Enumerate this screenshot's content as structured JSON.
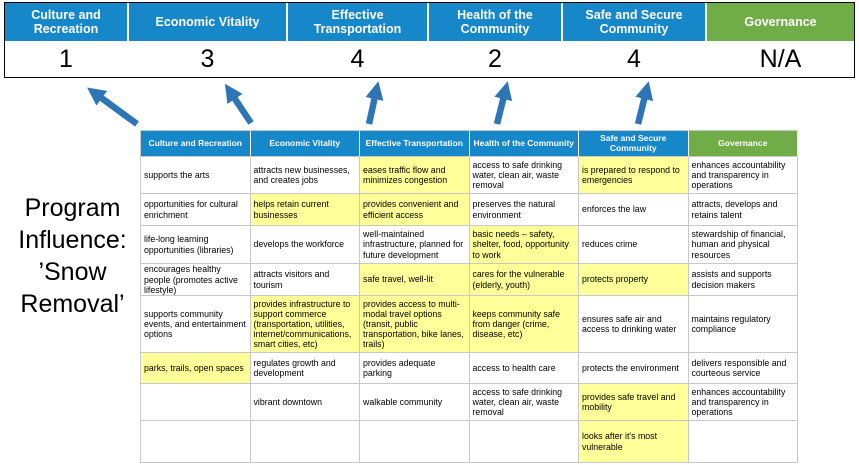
{
  "colors": {
    "blue": "#1688C9",
    "green": "#70AD47",
    "yellow": "#FFFF99",
    "arrow": "#2E75B6",
    "grid": "#C8C8C8"
  },
  "title": {
    "lines": [
      "Program",
      "Influence:",
      "’Snow",
      "Removal’"
    ]
  },
  "banner": {
    "columns": [
      {
        "label": "Culture and Recreation",
        "score": "1",
        "theme": "blue"
      },
      {
        "label": "Economic Vitality",
        "score": "3",
        "theme": "blue"
      },
      {
        "label": "Effective Transportation",
        "score": "4",
        "theme": "blue"
      },
      {
        "label": "Health of the Community",
        "score": "2",
        "theme": "blue"
      },
      {
        "label": "Safe and Secure Community",
        "score": "4",
        "theme": "blue"
      },
      {
        "label": "Governance",
        "score": "N/A",
        "theme": "green"
      }
    ]
  },
  "matrix": {
    "headers": [
      {
        "label": "Culture and Recreation",
        "theme": "blue"
      },
      {
        "label": "Economic Vitality",
        "theme": "blue"
      },
      {
        "label": "Effective Transportation",
        "theme": "blue"
      },
      {
        "label": "Health of the Community",
        "theme": "blue"
      },
      {
        "label": "Safe and Secure Community",
        "theme": "blue"
      },
      {
        "label": "Governance",
        "theme": "green"
      }
    ],
    "rows": [
      [
        {
          "text": "supports the arts",
          "highlight": false
        },
        {
          "text": "attracts new businesses, and creates jobs",
          "highlight": false
        },
        {
          "text": "eases traffic flow and minimizes congestion",
          "highlight": true
        },
        {
          "text": "access to safe drinking water, clean air, waste removal",
          "highlight": false
        },
        {
          "text": "is prepared to respond to emergencies",
          "highlight": true
        },
        {
          "text": "enhances accountability and transparency in operations",
          "highlight": false
        }
      ],
      [
        {
          "text": "opportunities for cultural enrichment",
          "highlight": false
        },
        {
          "text": "helps retain current businesses",
          "highlight": true
        },
        {
          "text": "provides convenient and efficient access",
          "highlight": true
        },
        {
          "text": "preserves the natural environment",
          "highlight": false
        },
        {
          "text": "enforces the law",
          "highlight": false
        },
        {
          "text": "attracts, develops and retains talent",
          "highlight": false
        }
      ],
      [
        {
          "text": "life-long learning opportunities (libraries)",
          "highlight": false
        },
        {
          "text": "develops the workforce",
          "highlight": false
        },
        {
          "text": "well-maintained infrastructure, planned for future development",
          "highlight": false
        },
        {
          "text": "basic needs – safety, shelter, food, opportunity to work",
          "highlight": true
        },
        {
          "text": "reduces crime",
          "highlight": false
        },
        {
          "text": "stewardship of financial, human and physical resources",
          "highlight": false
        }
      ],
      [
        {
          "text": "encourages healthy people (promotes active lifestyle)",
          "highlight": false
        },
        {
          "text": "attracts visitors and tourism",
          "highlight": false
        },
        {
          "text": "safe travel, well-lit",
          "highlight": true
        },
        {
          "text": "cares for the vulnerable (elderly, youth)",
          "highlight": true
        },
        {
          "text": "protects property",
          "highlight": true
        },
        {
          "text": "assists and supports decision makers",
          "highlight": false
        }
      ],
      [
        {
          "text": "supports community events, and entertainment options",
          "highlight": false
        },
        {
          "text": "provides infrastructure to support commerce (transportation, utilities, internet/communications, smart cities, etc)",
          "highlight": true
        },
        {
          "text": "provides access to multi-modal travel options (transit, public transportation, bike lanes, trails)",
          "highlight": true
        },
        {
          "text": "keeps community safe from danger (crime, disease, etc)",
          "highlight": true
        },
        {
          "text": "ensures safe air and access to drinking water",
          "highlight": false
        },
        {
          "text": "maintains regulatory compliance",
          "highlight": false
        }
      ],
      [
        {
          "text": "parks, trails, open spaces",
          "highlight": true
        },
        {
          "text": "regulates growth and development",
          "highlight": false
        },
        {
          "text": "provides adequate parking",
          "highlight": false
        },
        {
          "text": "access to health care",
          "highlight": false
        },
        {
          "text": "protects the environment",
          "highlight": false
        },
        {
          "text": "delivers responsible and courteous service",
          "highlight": false
        }
      ],
      [
        {
          "text": "",
          "highlight": false
        },
        {
          "text": "vibrant downtown",
          "highlight": false
        },
        {
          "text": "walkable community",
          "highlight": false
        },
        {
          "text": "access to safe drinking water, clean air, waste removal",
          "highlight": false
        },
        {
          "text": "provides safe travel and mobility",
          "highlight": true
        },
        {
          "text": "enhances accountability and transparency in operations",
          "highlight": false
        }
      ],
      [
        {
          "text": "",
          "highlight": false
        },
        {
          "text": "",
          "highlight": false
        },
        {
          "text": "",
          "highlight": false
        },
        {
          "text": "",
          "highlight": false
        },
        {
          "text": "looks after it's most vulnerable",
          "highlight": true
        },
        {
          "text": "",
          "highlight": false
        }
      ]
    ]
  }
}
